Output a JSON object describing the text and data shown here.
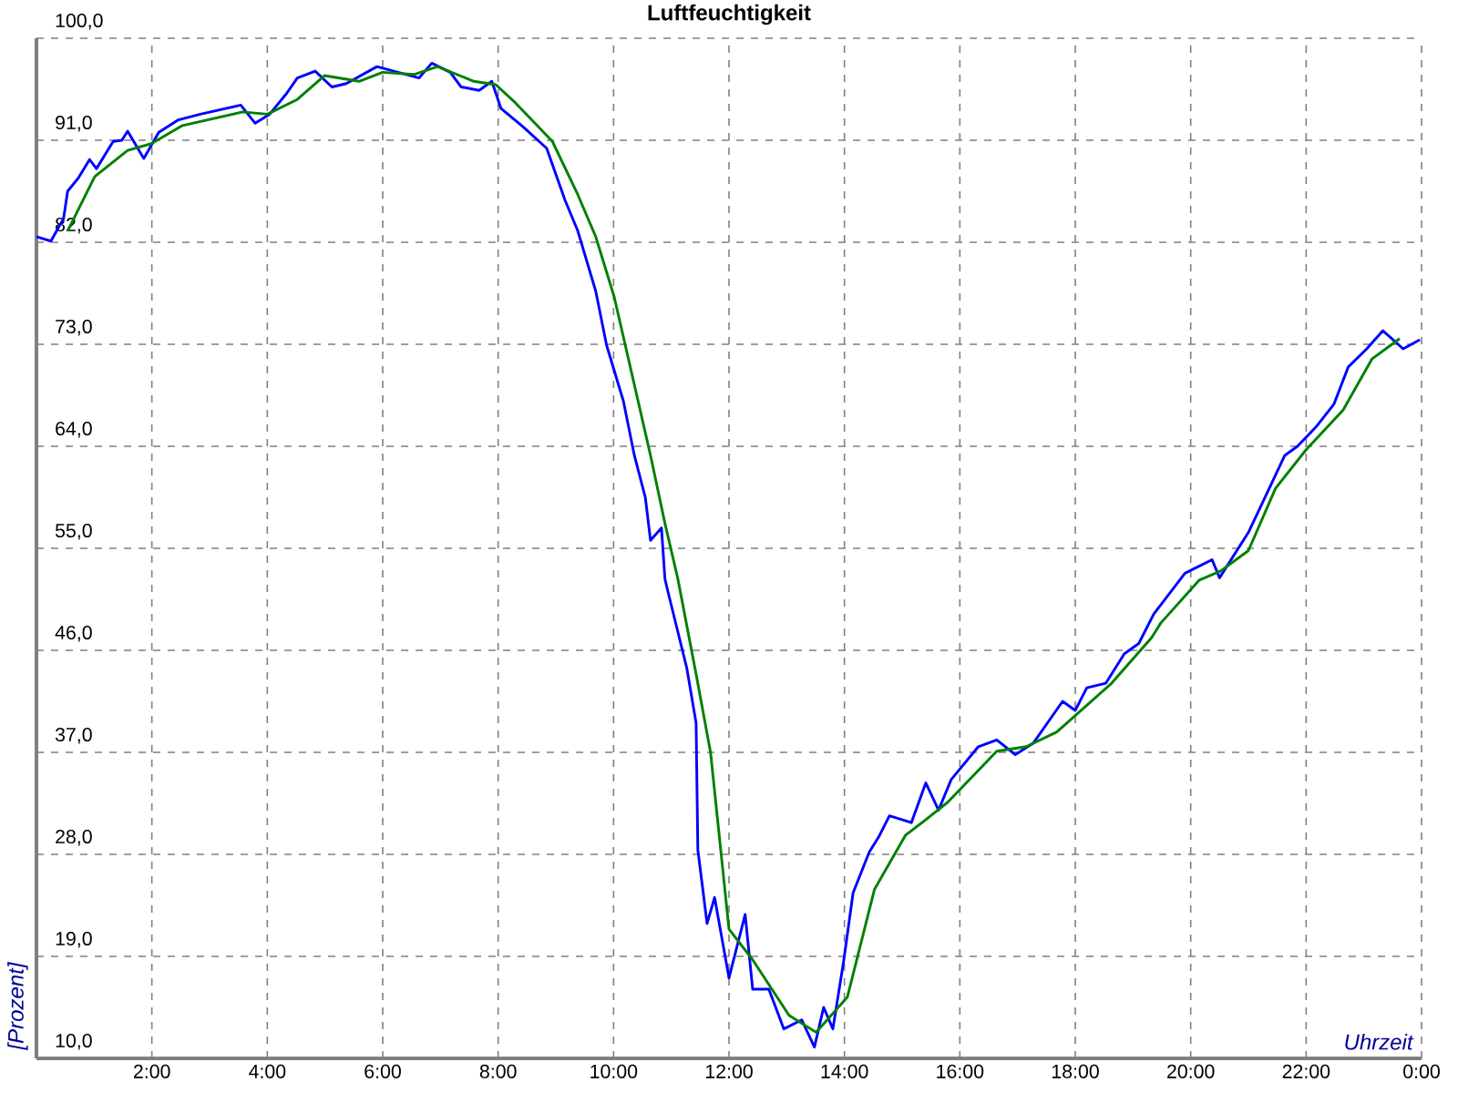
{
  "chart_data": {
    "type": "line",
    "title": "Luftfeuchtigkeit",
    "xlabel": "Uhrzeit",
    "ylabel": "[Prozent]",
    "xlim": [
      0,
      24
    ],
    "ylim": [
      10,
      100
    ],
    "xticks": [
      {
        "value": 0,
        "label": null
      },
      {
        "value": 2,
        "label": "2:00"
      },
      {
        "value": 4,
        "label": "4:00"
      },
      {
        "value": 6,
        "label": "6:00"
      },
      {
        "value": 8,
        "label": "8:00"
      },
      {
        "value": 10,
        "label": "10:00"
      },
      {
        "value": 12,
        "label": "12:00"
      },
      {
        "value": 14,
        "label": "14:00"
      },
      {
        "value": 16,
        "label": "16:00"
      },
      {
        "value": 18,
        "label": "18:00"
      },
      {
        "value": 20,
        "label": "20:00"
      },
      {
        "value": 22,
        "label": "22:00"
      },
      {
        "value": 24,
        "label": "0:00"
      }
    ],
    "yticks": [
      {
        "value": 10,
        "label": "10,0"
      },
      {
        "value": 19,
        "label": "19,0"
      },
      {
        "value": 28,
        "label": "28,0"
      },
      {
        "value": 37,
        "label": "37,0"
      },
      {
        "value": 46,
        "label": "46,0"
      },
      {
        "value": 55,
        "label": "55,0"
      },
      {
        "value": 64,
        "label": "64,0"
      },
      {
        "value": 73,
        "label": "73,0"
      },
      {
        "value": 82,
        "label": "82,0"
      },
      {
        "value": 91,
        "label": "91,0"
      },
      {
        "value": 100,
        "label": "100,0"
      }
    ],
    "grid": true,
    "marker": "none",
    "line_style": "solid",
    "series": [
      {
        "color": "#0000ff",
        "x": [
          0,
          0.25,
          0.47,
          0.54,
          0.73,
          0.92,
          1.04,
          1.33,
          1.48,
          1.58,
          1.86,
          2.12,
          2.46,
          2.84,
          3.54,
          3.79,
          4.04,
          4.33,
          4.52,
          4.83,
          5.12,
          5.37,
          5.9,
          6.63,
          6.85,
          7.17,
          7.36,
          7.67,
          7.89,
          8.05,
          8.43,
          8.84,
          9.16,
          9.38,
          9.69,
          9.88,
          10.17,
          10.36,
          10.55,
          10.64,
          10.83,
          10.89,
          10.96,
          11.27,
          11.43,
          11.46,
          11.62,
          11.75,
          12.0,
          12.28,
          12.41,
          12.69,
          12.95,
          13.26,
          13.48,
          13.64,
          13.8,
          13.99,
          14.15,
          14.43,
          14.59,
          14.78,
          15.16,
          15.41,
          15.63,
          15.85,
          16.32,
          16.64,
          16.96,
          17.27,
          17.78,
          18.0,
          18.2,
          18.53,
          18.85,
          19.1,
          19.36,
          19.9,
          20.37,
          20.5,
          21.0,
          21.38,
          21.63,
          21.85,
          22.17,
          22.48,
          22.73,
          23.05,
          23.33,
          23.68,
          23.97
        ],
        "values": [
          82.5,
          82.1,
          84.1,
          86.5,
          87.7,
          89.3,
          88.5,
          90.9,
          91.0,
          91.8,
          89.4,
          91.7,
          92.8,
          93.3,
          94.1,
          92.5,
          93.3,
          95.1,
          96.5,
          97.1,
          95.7,
          96.0,
          97.5,
          96.5,
          97.8,
          97.0,
          95.7,
          95.4,
          96.2,
          93.8,
          92.2,
          90.3,
          85.7,
          83.0,
          77.7,
          72.9,
          68.0,
          63.2,
          59.5,
          55.7,
          56.8,
          52.3,
          50.8,
          44.4,
          39.6,
          28.4,
          21.9,
          24.2,
          17.1,
          22.7,
          16.1,
          16.1,
          12.6,
          13.4,
          11.0,
          14.5,
          12.6,
          18.7,
          24.6,
          28.2,
          29.5,
          31.4,
          30.8,
          34.3,
          31.9,
          34.6,
          37.5,
          38.1,
          36.8,
          37.8,
          41.5,
          40.7,
          42.7,
          43.1,
          45.7,
          46.6,
          49.2,
          52.8,
          54.0,
          52.4,
          56.4,
          60.5,
          63.2,
          64.0,
          65.7,
          67.7,
          71.0,
          72.6,
          74.2,
          72.6,
          73.4
        ]
      },
      {
        "color": "#008000",
        "x": [
          0.54,
          1.01,
          1.58,
          1.99,
          2.53,
          3.57,
          4.0,
          4.52,
          4.99,
          5.59,
          6.0,
          6.54,
          6.95,
          7.58,
          7.96,
          8.3,
          8.94,
          9.38,
          9.69,
          10.01,
          10.33,
          10.64,
          10.89,
          11.11,
          11.43,
          11.68,
          12.0,
          12.41,
          13.04,
          13.51,
          14.05,
          14.52,
          15.06,
          15.47,
          15.79,
          16.64,
          17.15,
          17.68,
          18.63,
          19.32,
          19.48,
          20.15,
          20.52,
          21.0,
          21.47,
          22.0,
          22.64,
          23.14,
          23.62
        ],
        "values": [
          83.0,
          87.8,
          90.1,
          90.7,
          92.3,
          93.5,
          93.3,
          94.6,
          96.7,
          96.2,
          97.0,
          96.8,
          97.5,
          96.2,
          95.9,
          94.3,
          90.9,
          86.2,
          82.5,
          77.2,
          70.1,
          63.2,
          57.2,
          52.4,
          43.9,
          37.0,
          21.4,
          18.7,
          13.8,
          12.3,
          15.4,
          24.9,
          29.7,
          31.3,
          32.6,
          37.1,
          37.5,
          38.8,
          43.1,
          47.1,
          48.4,
          52.2,
          53.0,
          54.8,
          60.3,
          63.7,
          67.2,
          71.7,
          73.5
        ]
      }
    ]
  }
}
